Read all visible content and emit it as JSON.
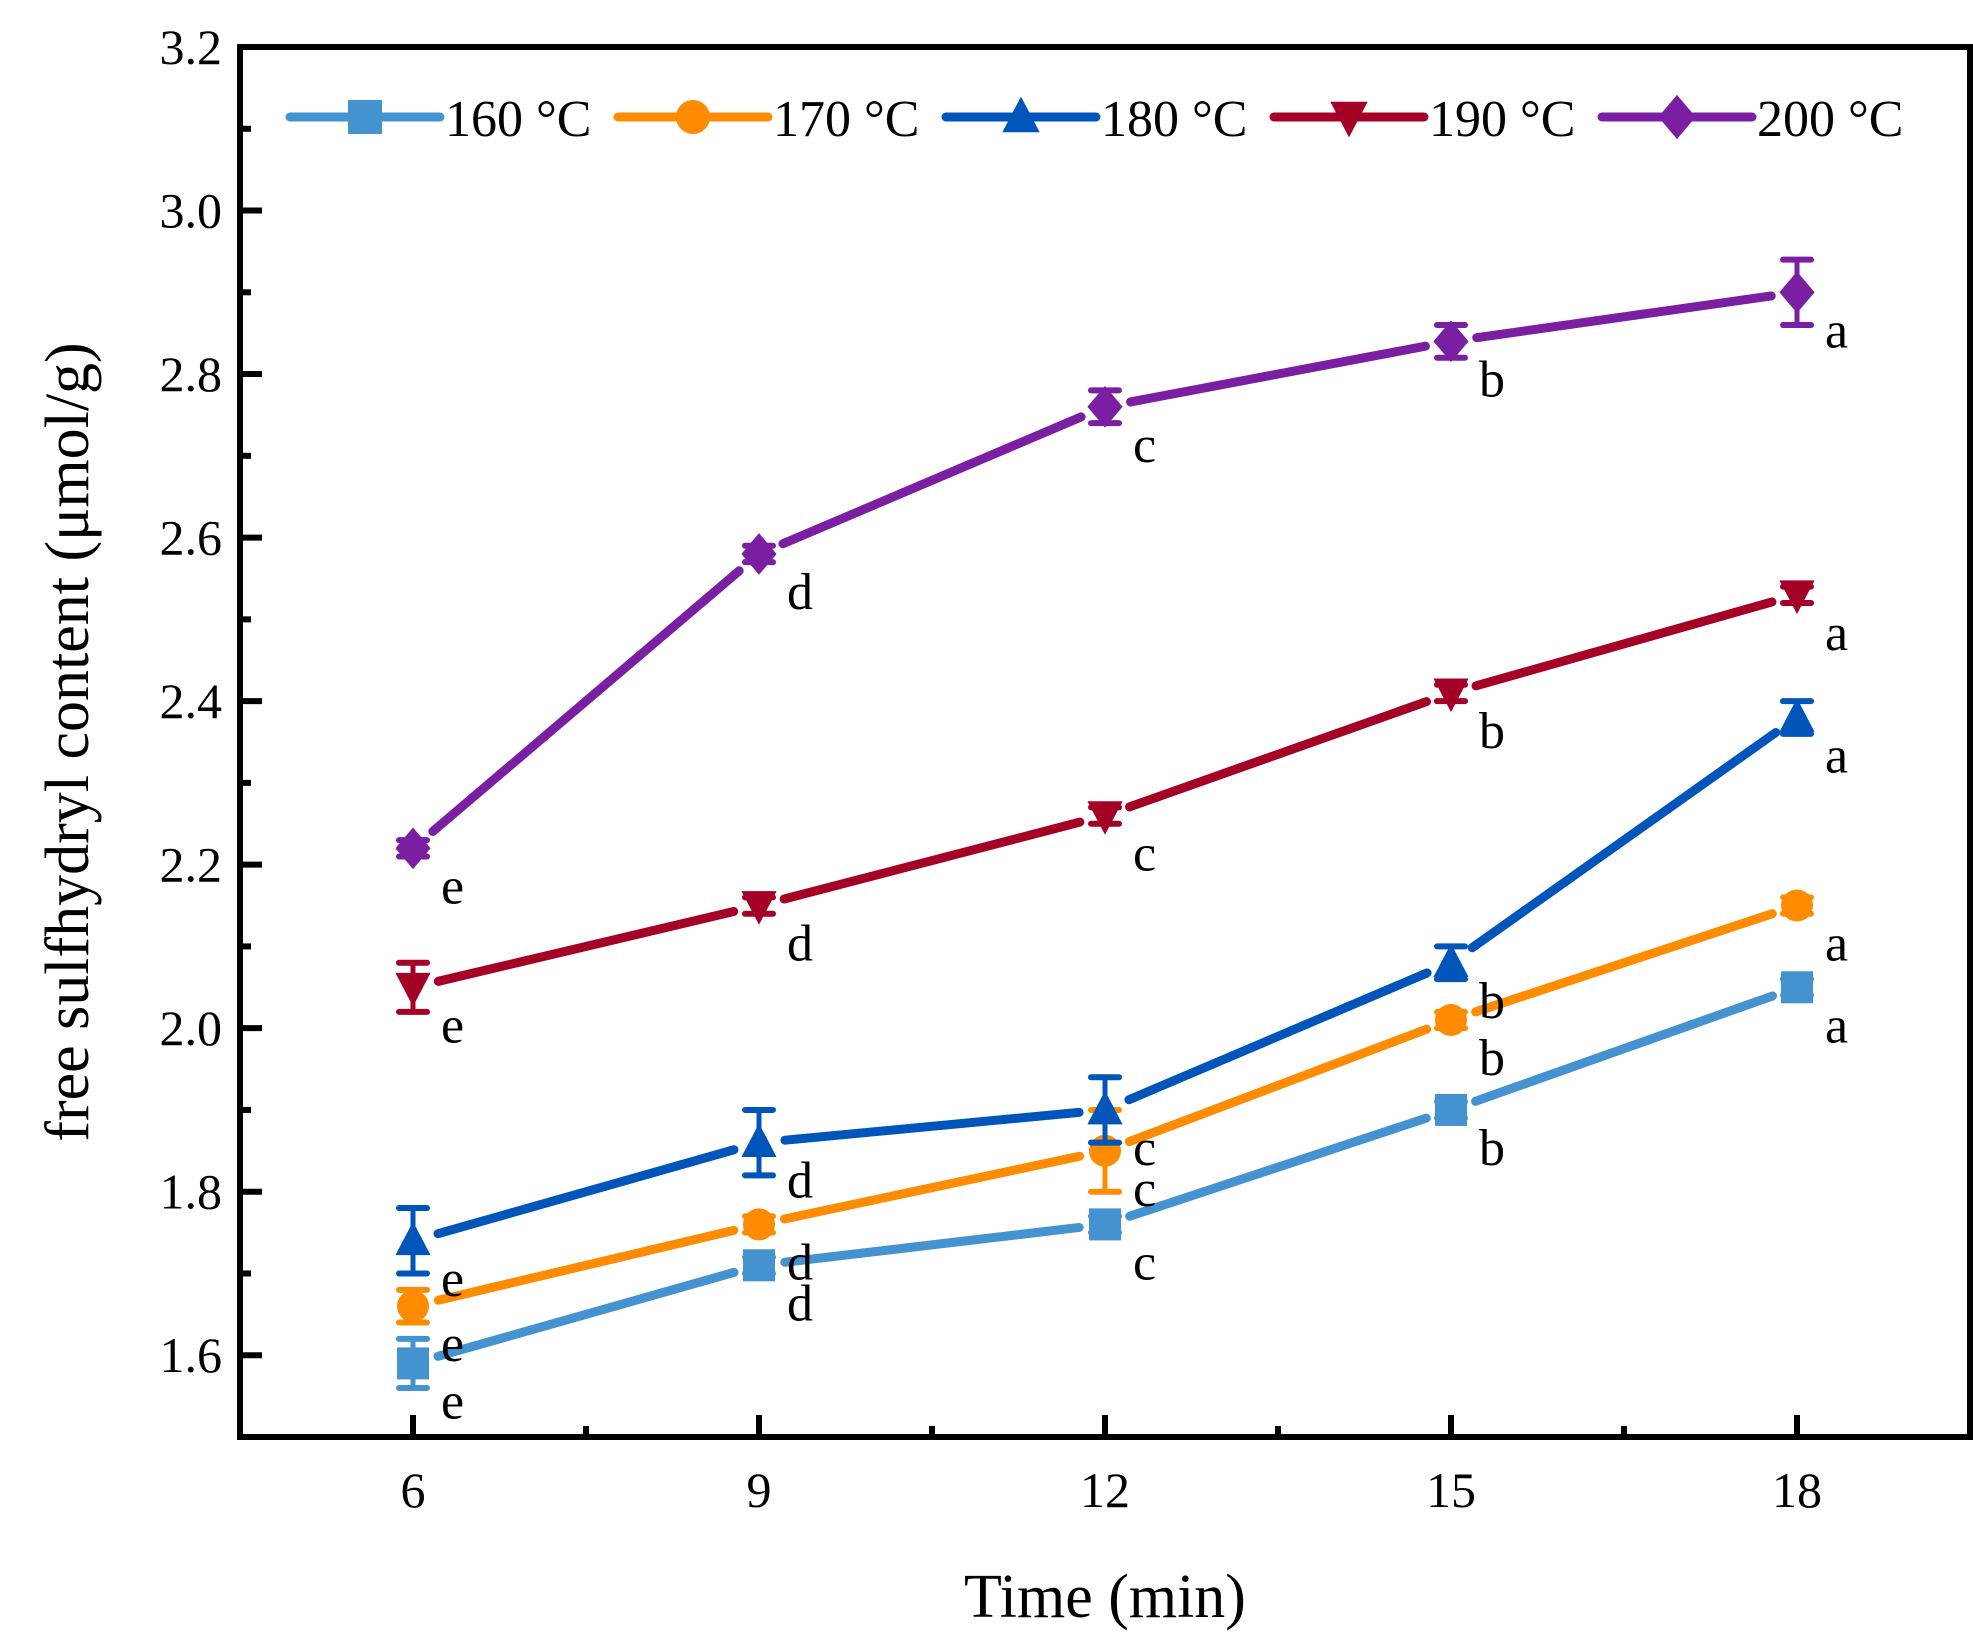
{
  "chart_data": {
    "type": "line",
    "xlabel": "Time (min)",
    "ylabel": "free sulfhydryl content (μmol/g)",
    "x": [
      6,
      9,
      12,
      15,
      18
    ],
    "xlim": [
      4.5,
      19.5
    ],
    "ylim": [
      1.5,
      3.2
    ],
    "xticks": [
      "6",
      "9",
      "12",
      "15",
      "18"
    ],
    "yticks": [
      "1.6",
      "1.8",
      "2.0",
      "2.2",
      "2.4",
      "2.6",
      "2.8",
      "3.0",
      "3.2"
    ],
    "grid": false,
    "legend_position": "top",
    "series": [
      {
        "name": "160 °C",
        "color": "#4492d0",
        "marker": "square",
        "values": [
          1.59,
          1.71,
          1.76,
          1.9,
          2.05
        ],
        "errors": [
          0.03,
          0.01,
          0.01,
          0.01,
          0.01
        ],
        "letters": [
          "e",
          "d",
          "c",
          "b",
          "a"
        ]
      },
      {
        "name": "170 °C",
        "color": "#ff8c00",
        "marker": "circle",
        "values": [
          1.66,
          1.76,
          1.85,
          2.01,
          2.15
        ],
        "errors": [
          0.02,
          0.01,
          0.05,
          0.01,
          0.01
        ],
        "letters": [
          "e",
          "d",
          "c",
          "b",
          "a"
        ]
      },
      {
        "name": "180 °C",
        "color": "#0055bb",
        "marker": "triangle-up",
        "values": [
          1.74,
          1.86,
          1.9,
          2.08,
          2.38
        ],
        "errors": [
          0.04,
          0.04,
          0.04,
          0.02,
          0.02
        ],
        "letters": [
          "e",
          "d",
          "c",
          "b",
          "a"
        ]
      },
      {
        "name": "190 °C",
        "color": "#a50026",
        "marker": "triangle-down",
        "values": [
          2.05,
          2.15,
          2.26,
          2.41,
          2.53
        ],
        "errors": [
          0.03,
          0.01,
          0.01,
          0.01,
          0.01
        ],
        "letters": [
          "e",
          "d",
          "c",
          "b",
          "a"
        ]
      },
      {
        "name": "200 °C",
        "color": "#7a1fa2",
        "marker": "diamond",
        "values": [
          2.22,
          2.58,
          2.76,
          2.84,
          2.9
        ],
        "errors": [
          0.01,
          0.01,
          0.02,
          0.02,
          0.04
        ],
        "letters": [
          "e",
          "d",
          "c",
          "b",
          "a"
        ]
      }
    ]
  }
}
